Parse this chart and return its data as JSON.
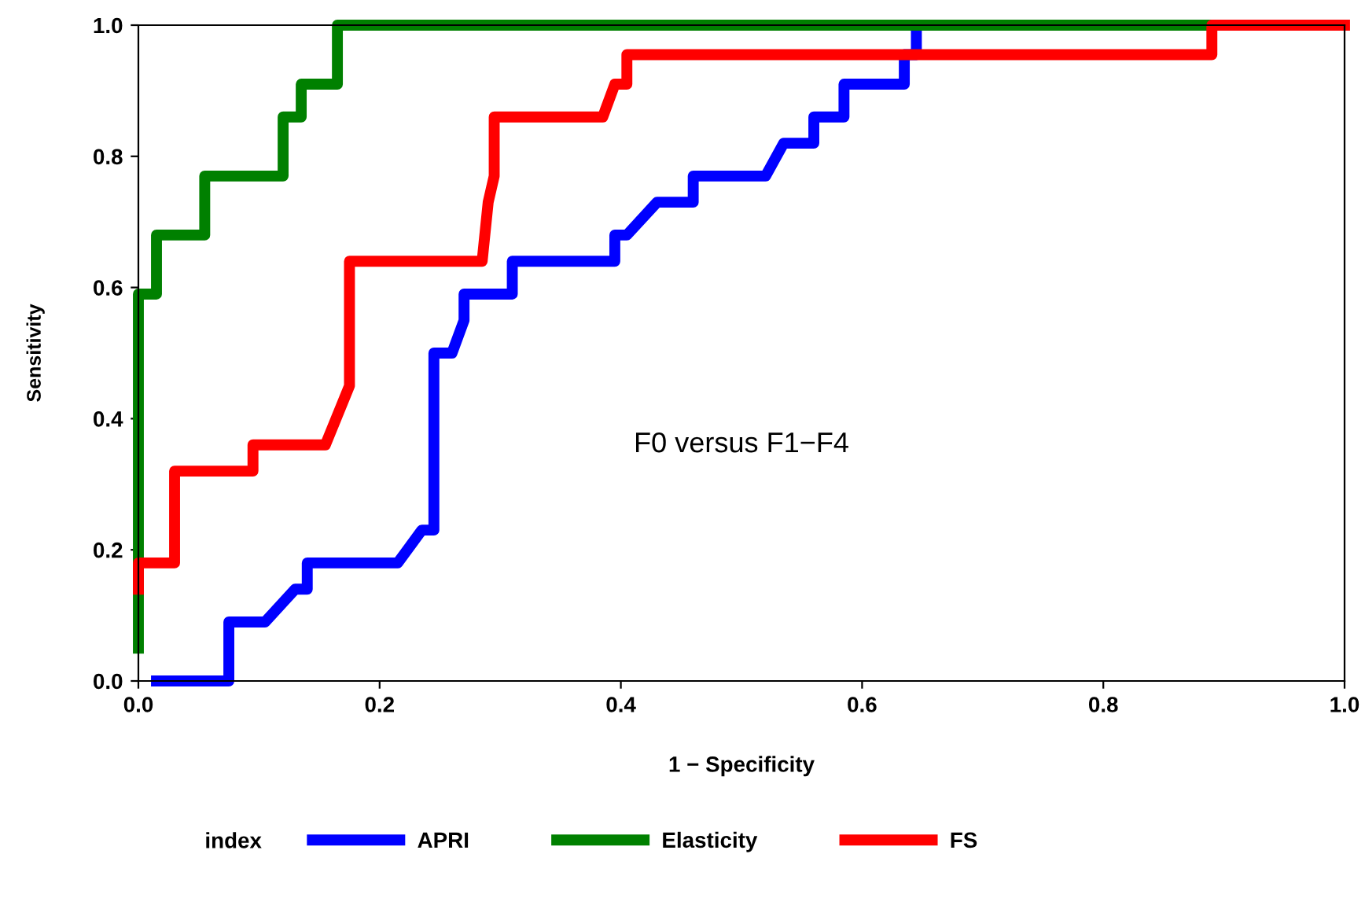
{
  "chart_data": {
    "type": "line",
    "xlabel": "1 − Specificity",
    "ylabel": "Sensitivity",
    "legend_title": "index",
    "legend": "bottom",
    "grid": false,
    "marker": "none",
    "line_style": "solid",
    "annotations": [
      "F0 versus F1−F4"
    ],
    "xlim": [
      0,
      1
    ],
    "ylim": [
      0,
      1
    ],
    "xticks": [
      {
        "value": 0,
        "label": "0.0"
      },
      0.2,
      0.4,
      0.6,
      0.8,
      {
        "value": 1,
        "label": "1.0"
      }
    ],
    "yticks": [
      {
        "value": 0,
        "label": "0.0"
      },
      0.2,
      0.4,
      0.6,
      0.8,
      {
        "value": 1,
        "label": "1.0"
      }
    ],
    "series": [
      {
        "name": "APRI",
        "color": "#0000ff",
        "x": [
          0.015,
          0.075,
          0.075,
          0.105,
          0.13,
          0.14,
          0.14,
          0.215,
          0.235,
          0.245,
          0.245,
          0.26,
          0.27,
          0.27,
          0.31,
          0.31,
          0.395,
          0.395,
          0.405,
          0.43,
          0.46,
          0.46,
          0.52,
          0.535,
          0.56,
          0.56,
          0.585,
          0.585,
          0.635,
          0.635,
          0.645,
          0.645
        ],
        "values": [
          0,
          0,
          0.09,
          0.09,
          0.14,
          0.14,
          0.18,
          0.18,
          0.23,
          0.23,
          0.5,
          0.5,
          0.55,
          0.59,
          0.59,
          0.64,
          0.64,
          0.68,
          0.68,
          0.73,
          0.73,
          0.77,
          0.77,
          0.82,
          0.82,
          0.86,
          0.86,
          0.91,
          0.91,
          0.955,
          0.955,
          1
        ]
      },
      {
        "name": "Elasticity",
        "color": "#008000",
        "x": [
          0,
          0,
          0.015,
          0.015,
          0.055,
          0.055,
          0.12,
          0.12,
          0.135,
          0.135,
          0.165,
          0.165,
          0.89
        ],
        "values": [
          0.05,
          0.59,
          0.59,
          0.68,
          0.68,
          0.77,
          0.77,
          0.86,
          0.86,
          0.91,
          0.91,
          1,
          1
        ]
      },
      {
        "name": "FS",
        "color": "#ff0000",
        "x": [
          0,
          0,
          0.03,
          0.03,
          0.095,
          0.095,
          0.155,
          0.175,
          0.175,
          0.285,
          0.29,
          0.295,
          0.295,
          0.385,
          0.395,
          0.405,
          0.405,
          0.89,
          0.89,
          1
        ],
        "values": [
          0.14,
          0.18,
          0.18,
          0.32,
          0.32,
          0.36,
          0.36,
          0.45,
          0.64,
          0.64,
          0.73,
          0.77,
          0.86,
          0.86,
          0.91,
          0.91,
          0.955,
          0.955,
          1,
          1
        ]
      }
    ]
  }
}
